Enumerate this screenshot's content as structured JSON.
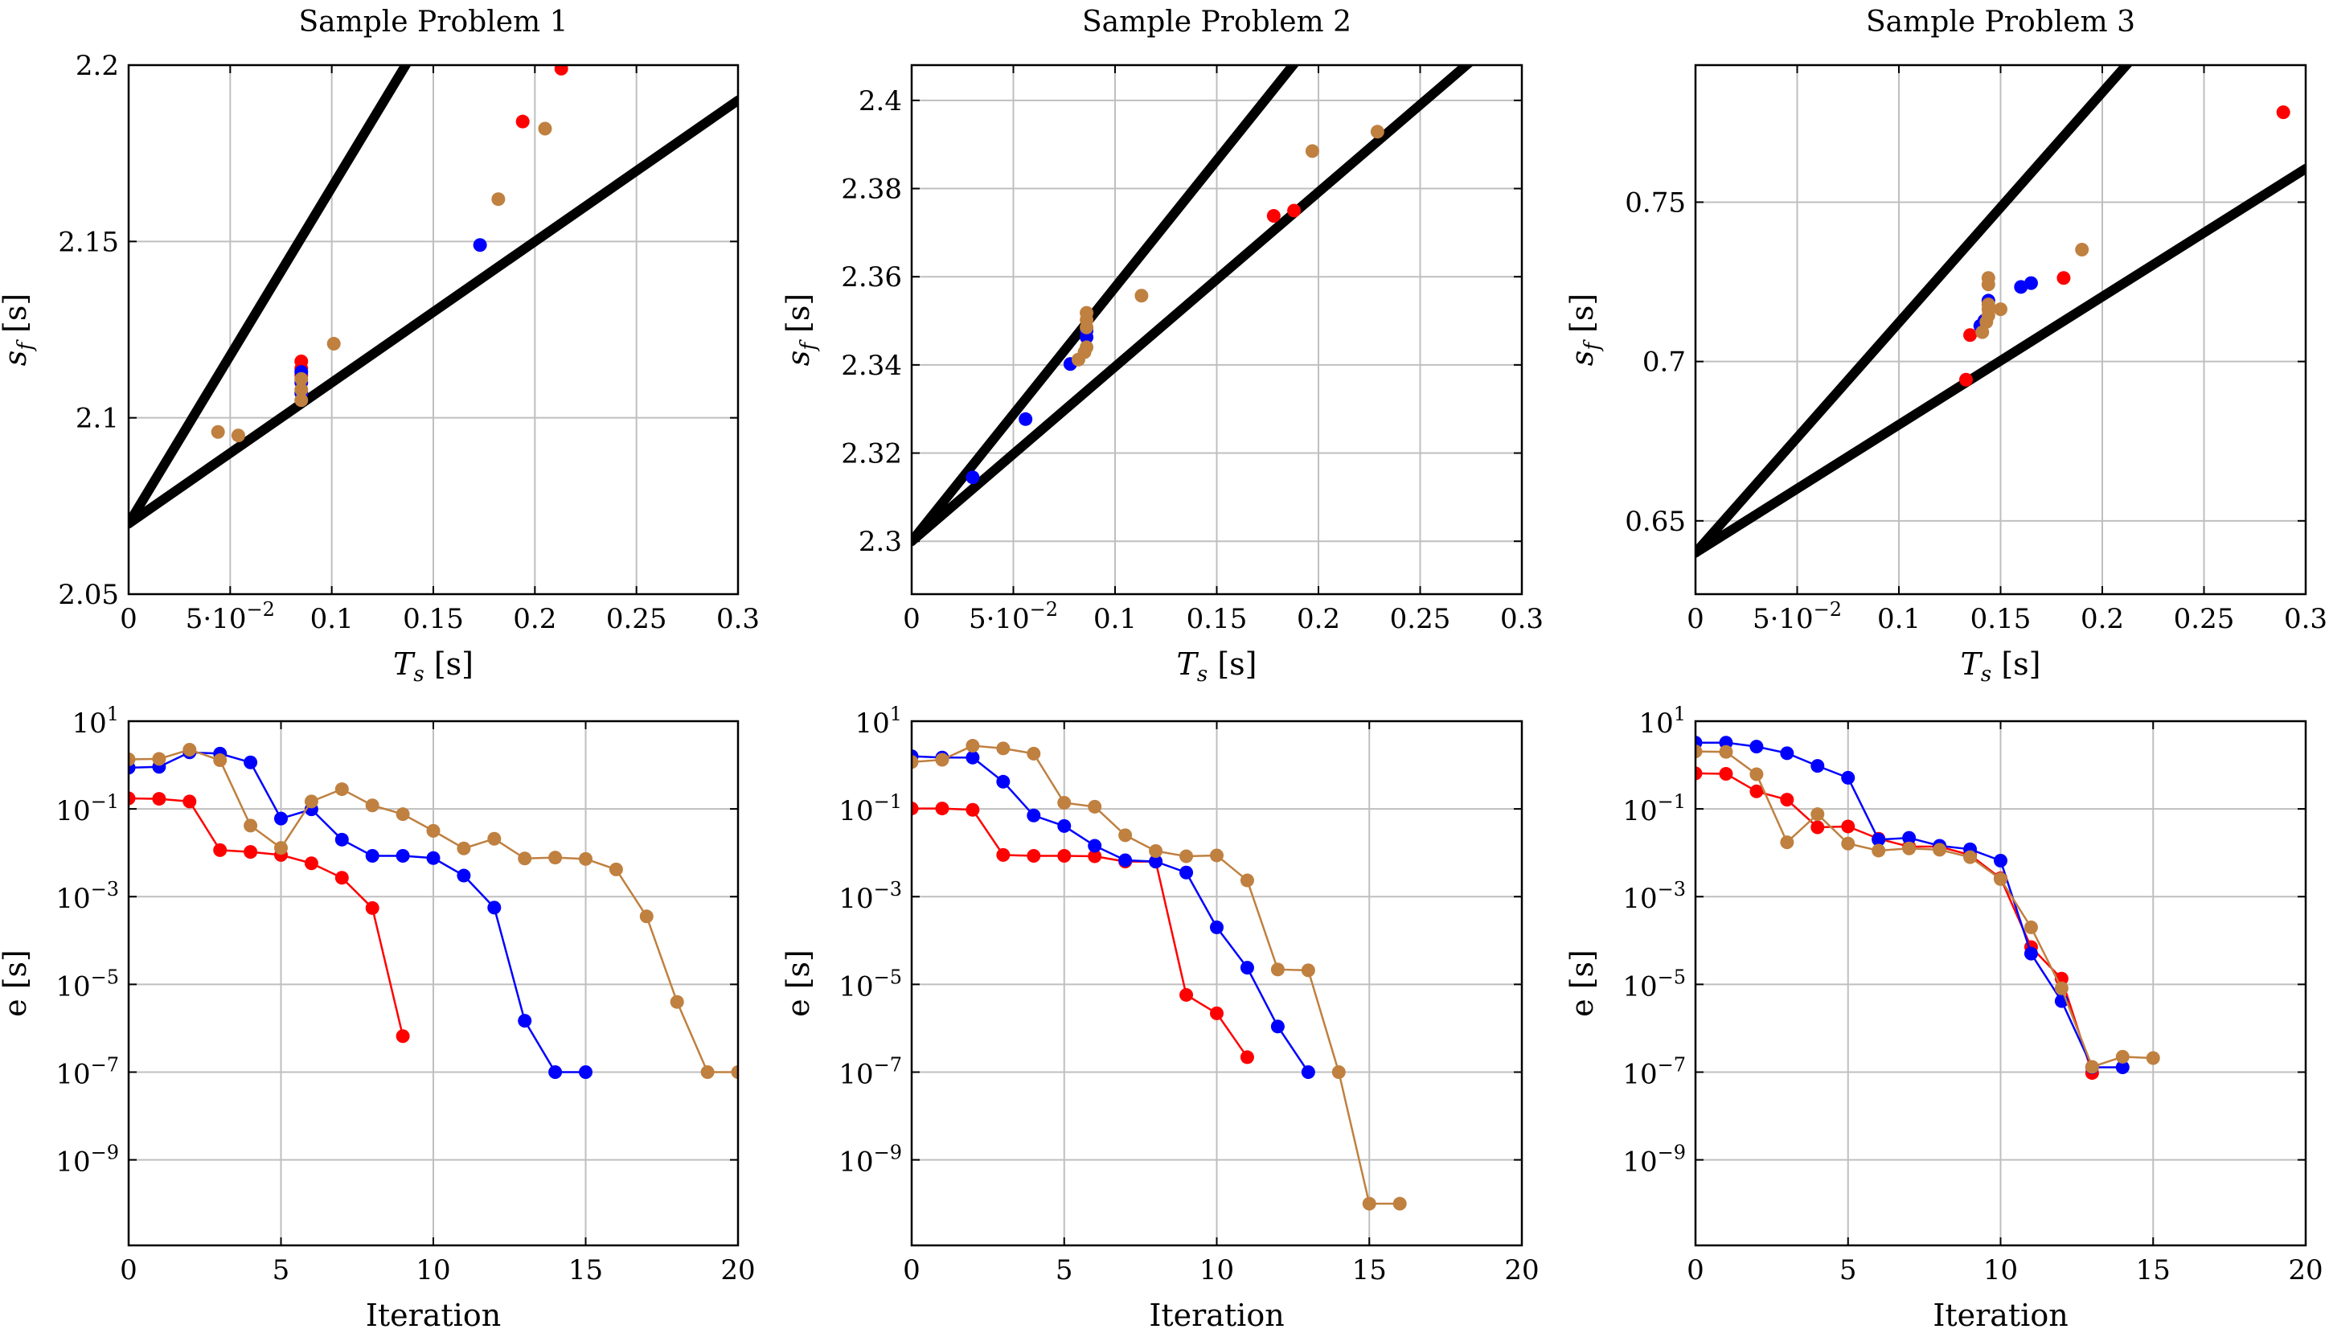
{
  "figure": {
    "colors": {
      "red": "#ff0000",
      "blue": "#0000ff",
      "brown": "#bf8040",
      "bound": "#000000",
      "grid": "#bfbfbf"
    },
    "charts": [
      {
        "id": "p1-scatter",
        "title": "Sample Problem 1",
        "type": "scatter",
        "xlabel": "T_s [s]",
        "ylabel": "s_f [s]",
        "xlim": [
          0,
          0.3
        ],
        "ylim": [
          2.05,
          2.2
        ],
        "xticks": [
          0,
          0.05,
          0.1,
          0.15,
          0.2,
          0.25,
          0.3
        ],
        "xtick_labels": [
          "0",
          "5·10^−2",
          "0.1",
          "0.15",
          "0.2",
          "0.25",
          "0.3"
        ],
        "yticks": [
          2.05,
          2.1,
          2.15,
          2.2
        ],
        "ytick_labels": [
          "2.05",
          "2.1",
          "2.15",
          "2.2"
        ],
        "bounds": [
          {
            "x": [
              0,
              0.3
            ],
            "y": [
              2.07,
              2.356
            ]
          },
          {
            "x": [
              0,
              0.3
            ],
            "y": [
              2.07,
              2.19
            ]
          }
        ],
        "series": [
          {
            "name": "red",
            "color": "red",
            "points": [
              [
                0.085,
                2.116
              ],
              [
                0.085,
                2.114
              ],
              [
                0.085,
                2.112
              ],
              [
                0.194,
                2.184
              ],
              [
                0.213,
                2.199
              ]
            ]
          },
          {
            "name": "blue",
            "color": "blue",
            "points": [
              [
                0.085,
                2.113
              ],
              [
                0.085,
                2.11
              ],
              [
                0.085,
                2.107
              ],
              [
                0.173,
                2.149
              ]
            ]
          },
          {
            "name": "brown",
            "color": "brown",
            "points": [
              [
                0.044,
                2.096
              ],
              [
                0.054,
                2.095
              ],
              [
                0.085,
                2.111
              ],
              [
                0.085,
                2.108
              ],
              [
                0.085,
                2.105
              ],
              [
                0.101,
                2.121
              ],
              [
                0.182,
                2.162
              ],
              [
                0.205,
                2.182
              ]
            ]
          }
        ]
      },
      {
        "id": "p2-scatter",
        "title": "Sample Problem 2",
        "type": "scatter",
        "xlabel": "T_s [s]",
        "ylabel": "s_f [s]",
        "xlim": [
          0,
          0.3
        ],
        "ylim": [
          2.288,
          2.408
        ],
        "xticks": [
          0,
          0.05,
          0.1,
          0.15,
          0.2,
          0.25,
          0.3
        ],
        "xtick_labels": [
          "0",
          "5·10^−2",
          "0.1",
          "0.15",
          "0.2",
          "0.25",
          "0.3"
        ],
        "yticks": [
          2.3,
          2.32,
          2.34,
          2.36,
          2.38,
          2.4
        ],
        "ytick_labels": [
          "2.3",
          "2.32",
          "2.34",
          "2.36",
          "2.38",
          "2.4"
        ],
        "bounds": [
          {
            "x": [
              0,
              0.3
            ],
            "y": [
              2.3,
              2.4728
            ]
          },
          {
            "x": [
              0,
              0.3
            ],
            "y": [
              2.3,
              2.4188
            ]
          }
        ],
        "series": [
          {
            "name": "red",
            "color": "red",
            "points": [
              [
                0.178,
                2.3738
              ],
              [
                0.188,
                2.375
              ]
            ]
          },
          {
            "name": "blue",
            "color": "blue",
            "points": [
              [
                0.03,
                2.3145
              ],
              [
                0.056,
                2.3277
              ],
              [
                0.078,
                2.3402
              ],
              [
                0.086,
                2.3463
              ],
              [
                0.086,
                2.3478
              ]
            ]
          },
          {
            "name": "brown",
            "color": "brown",
            "points": [
              [
                0.082,
                2.3412
              ],
              [
                0.085,
                2.3429
              ],
              [
                0.086,
                2.344
              ],
              [
                0.086,
                2.3485
              ],
              [
                0.086,
                2.3502
              ],
              [
                0.086,
                2.3518
              ],
              [
                0.113,
                2.3557
              ],
              [
                0.197,
                2.3885
              ],
              [
                0.229,
                2.3929
              ]
            ]
          }
        ]
      },
      {
        "id": "p3-scatter",
        "title": "Sample Problem 3",
        "type": "scatter",
        "xlabel": "T_s [s]",
        "ylabel": "s_f [s]",
        "xlim": [
          0,
          0.3
        ],
        "ylim": [
          0.627,
          0.793
        ],
        "xticks": [
          0,
          0.05,
          0.1,
          0.15,
          0.2,
          0.25,
          0.3
        ],
        "xtick_labels": [
          "0",
          "5·10^−2",
          "0.1",
          "0.15",
          "0.2",
          "0.25",
          "0.3"
        ],
        "yticks": [
          0.65,
          0.7,
          0.75
        ],
        "ytick_labels": [
          "0.65",
          "0.7",
          "0.75"
        ],
        "bounds": [
          {
            "x": [
              0,
              0.3
            ],
            "y": [
              0.64,
              0.8567
            ]
          },
          {
            "x": [
              0,
              0.3
            ],
            "y": [
              0.64,
              0.7605
            ]
          }
        ],
        "series": [
          {
            "name": "red",
            "color": "red",
            "points": [
              [
                0.133,
                0.6943
              ],
              [
                0.135,
                0.7083
              ],
              [
                0.181,
                0.7262
              ],
              [
                0.289,
                0.7782
              ]
            ]
          },
          {
            "name": "blue",
            "color": "blue",
            "points": [
              [
                0.14,
                0.7112
              ],
              [
                0.142,
                0.7128
              ],
              [
                0.144,
                0.7191
              ],
              [
                0.16,
                0.7234
              ],
              [
                0.165,
                0.7246
              ]
            ]
          },
          {
            "name": "brown",
            "color": "brown",
            "points": [
              [
                0.141,
                0.7092
              ],
              [
                0.143,
                0.7124
              ],
              [
                0.144,
                0.7144
              ],
              [
                0.144,
                0.7164
              ],
              [
                0.144,
                0.7179
              ],
              [
                0.144,
                0.7242
              ],
              [
                0.144,
                0.7262
              ],
              [
                0.15,
                0.7164
              ],
              [
                0.19,
                0.7351
              ]
            ]
          }
        ]
      },
      {
        "id": "p1-convergence",
        "type": "line",
        "yscale": "log",
        "xlabel": "Iteration",
        "ylabel": "e [s]",
        "xlim": [
          0,
          20
        ],
        "ylim_log10": [
          -10.95,
          1
        ],
        "xticks": [
          0,
          5,
          10,
          15,
          20
        ],
        "xtick_labels": [
          "0",
          "5",
          "10",
          "15",
          "20"
        ],
        "ytick_exponents": [
          1,
          -1,
          -3,
          -5,
          -7,
          -9
        ],
        "ytick_base": "10",
        "series": [
          {
            "name": "red",
            "color": "red",
            "x": [
              0,
              1,
              2,
              3,
              4,
              5,
              6,
              7,
              8,
              9
            ],
            "log10_e": [
              -0.76,
              -0.77,
              -0.83,
              -1.94,
              -1.98,
              -2.05,
              -2.24,
              -2.57,
              -3.26,
              -6.18
            ]
          },
          {
            "name": "blue",
            "color": "blue",
            "x": [
              0,
              1,
              2,
              3,
              4,
              5,
              6,
              7,
              8,
              9,
              10,
              11,
              12,
              13,
              14,
              15
            ],
            "log10_e": [
              -0.06,
              -0.04,
              0.29,
              0.26,
              0.06,
              -1.22,
              -1.01,
              -1.7,
              -2.07,
              -2.07,
              -2.12,
              -2.52,
              -3.25,
              -5.83,
              -7,
              -7
            ]
          },
          {
            "name": "brown",
            "color": "brown",
            "x": [
              0,
              1,
              2,
              3,
              4,
              5,
              6,
              7,
              8,
              9,
              10,
              11,
              12,
              13,
              14,
              15,
              16,
              17,
              18,
              19,
              20
            ],
            "log10_e": [
              0.13,
              0.14,
              0.35,
              0.11,
              -1.38,
              -1.89,
              -0.83,
              -0.55,
              -0.92,
              -1.12,
              -1.5,
              -1.9,
              -1.68,
              -2.13,
              -2.11,
              -2.14,
              -2.38,
              -3.45,
              -5.4,
              -7,
              -7
            ]
          }
        ]
      },
      {
        "id": "p2-convergence",
        "type": "line",
        "yscale": "log",
        "xlabel": "Iteration",
        "ylabel": "e [s]",
        "xlim": [
          0,
          20
        ],
        "ylim_log10": [
          -10.95,
          1
        ],
        "xticks": [
          0,
          5,
          10,
          15,
          20
        ],
        "xtick_labels": [
          "0",
          "5",
          "10",
          "15",
          "20"
        ],
        "ytick_exponents": [
          1,
          -1,
          -3,
          -5,
          -7,
          -9
        ],
        "ytick_base": "10",
        "series": [
          {
            "name": "red",
            "color": "red",
            "x": [
              0,
              1,
              2,
              3,
              4,
              5,
              6,
              7,
              8,
              9,
              10,
              11
            ],
            "log10_e": [
              -0.99,
              -0.99,
              -1.02,
              -2.05,
              -2.07,
              -2.07,
              -2.08,
              -2.2,
              -2.2,
              -5.24,
              -5.66,
              -6.66
            ]
          },
          {
            "name": "blue",
            "color": "blue",
            "x": [
              0,
              1,
              2,
              3,
              4,
              5,
              6,
              7,
              8,
              9,
              10,
              11,
              12,
              13
            ],
            "log10_e": [
              0.2,
              0.17,
              0.17,
              -0.38,
              -1.15,
              -1.39,
              -1.84,
              -2.17,
              -2.2,
              -2.45,
              -3.7,
              -4.62,
              -5.96,
              -7
            ]
          },
          {
            "name": "brown",
            "color": "brown",
            "x": [
              0,
              1,
              2,
              3,
              4,
              5,
              6,
              7,
              8,
              9,
              10,
              11,
              12,
              13,
              14,
              15,
              16
            ],
            "log10_e": [
              0.07,
              0.12,
              0.44,
              0.38,
              0.26,
              -0.86,
              -0.95,
              -1.6,
              -1.96,
              -2.08,
              -2.06,
              -2.63,
              -4.66,
              -4.68,
              -7,
              -10,
              -10
            ]
          }
        ]
      },
      {
        "id": "p3-convergence",
        "type": "line",
        "yscale": "log",
        "xlabel": "Iteration",
        "ylabel": "e [s]",
        "xlim": [
          0,
          20
        ],
        "ylim_log10": [
          -10.95,
          1
        ],
        "xticks": [
          0,
          5,
          10,
          15,
          20
        ],
        "xtick_labels": [
          "0",
          "5",
          "10",
          "15",
          "20"
        ],
        "ytick_exponents": [
          1,
          -1,
          -3,
          -5,
          -7,
          -9
        ],
        "ytick_base": "10",
        "series": [
          {
            "name": "red",
            "color": "red",
            "x": [
              0,
              1,
              2,
              3,
              4,
              5,
              6,
              7,
              8,
              9,
              10,
              11,
              12,
              13
            ],
            "log10_e": [
              -0.19,
              -0.2,
              -0.6,
              -0.79,
              -1.42,
              -1.4,
              -1.68,
              -1.86,
              -1.86,
              -2.05,
              -2.58,
              -4.15,
              -4.87,
              -7.02
            ]
          },
          {
            "name": "blue",
            "color": "blue",
            "x": [
              0,
              1,
              2,
              3,
              4,
              5,
              6,
              7,
              8,
              9,
              10,
              11,
              12,
              13,
              14
            ],
            "log10_e": [
              0.51,
              0.51,
              0.42,
              0.27,
              -0.02,
              -0.29,
              -1.7,
              -1.66,
              -1.84,
              -1.92,
              -2.18,
              -4.3,
              -5.38,
              -6.89,
              -6.89
            ]
          },
          {
            "name": "brown",
            "color": "brown",
            "x": [
              0,
              1,
              2,
              3,
              4,
              5,
              6,
              7,
              8,
              9,
              10,
              11,
              12,
              13,
              14,
              15
            ],
            "log10_e": [
              0.31,
              0.3,
              -0.21,
              -1.76,
              -1.12,
              -1.79,
              -1.95,
              -1.9,
              -1.93,
              -2.1,
              -2.6,
              -3.7,
              -5.09,
              -6.88,
              -6.65,
              -6.68
            ]
          }
        ]
      }
    ]
  }
}
